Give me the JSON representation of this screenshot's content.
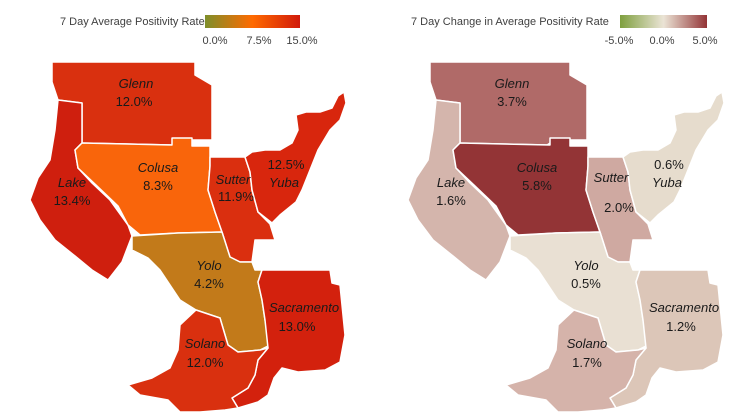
{
  "maps": {
    "left": {
      "legend": {
        "title": "7 Day Average Positivity Rate",
        "ticks": [
          "0.0%",
          "7.5%",
          "15.0%"
        ],
        "gradient": [
          "#7e8f2a",
          "#ff6a00",
          "#d11a0a"
        ]
      },
      "counties": {
        "glenn": {
          "name": "Glenn",
          "value": "12.0%",
          "color": "#d9300f"
        },
        "lake": {
          "name": "Lake",
          "value": "13.4%",
          "color": "#cf1f0e"
        },
        "colusa": {
          "name": "Colusa",
          "value": "8.3%",
          "color": "#f9650b"
        },
        "sutter": {
          "name": "Sutter",
          "value": "11.9%",
          "color": "#da2f0f"
        },
        "yuba": {
          "name": "Yuba",
          "value": "12.5%",
          "color": "#d8260d"
        },
        "yolo": {
          "name": "Yolo",
          "value": "4.2%",
          "color": "#c27a1a"
        },
        "sacramento": {
          "name": "Sacramento",
          "value": "13.0%",
          "color": "#d3210d"
        },
        "solano": {
          "name": "Solano",
          "value": "12.0%",
          "color": "#d9300f"
        }
      }
    },
    "right": {
      "legend": {
        "title": "7 Day Change in Average Positivity Rate",
        "ticks": [
          "-5.0%",
          "0.0%",
          "5.0%"
        ],
        "gradient": [
          "#7e9f3e",
          "#ebe4d6",
          "#933436"
        ]
      },
      "counties": {
        "glenn": {
          "name": "Glenn",
          "value": "3.7%",
          "color": "#b06a68"
        },
        "lake": {
          "name": "Lake",
          "value": "1.6%",
          "color": "#d4b5ac"
        },
        "colusa": {
          "name": "Colusa",
          "value": "5.8%",
          "color": "#933436"
        },
        "sutter": {
          "name": "Sutter",
          "value": "2.0%",
          "color": "#cfa9a1"
        },
        "yuba": {
          "name": "Yuba",
          "value": "0.6%",
          "color": "#e6dccd"
        },
        "yolo": {
          "name": "Yolo",
          "value": "0.5%",
          "color": "#e9e0d3"
        },
        "sacramento": {
          "name": "Sacramento",
          "value": "1.2%",
          "color": "#dcc6b8"
        },
        "solano": {
          "name": "Solano",
          "value": "1.7%",
          "color": "#d5b3aa"
        }
      }
    }
  }
}
